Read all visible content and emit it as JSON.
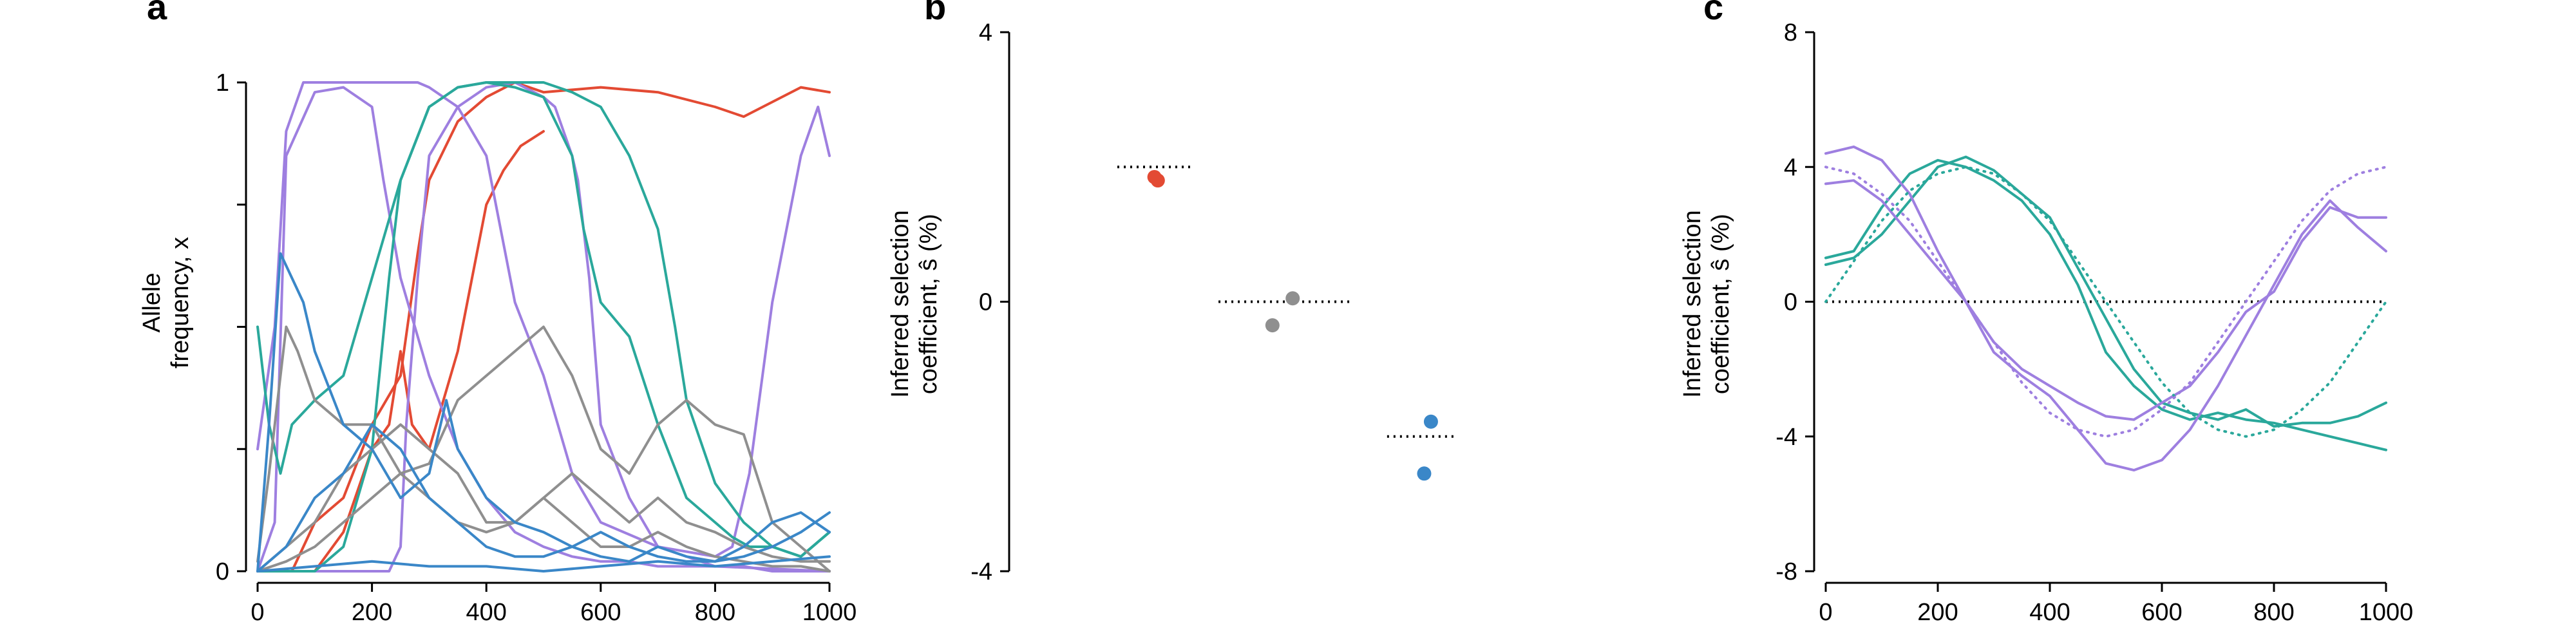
{
  "figure": {
    "panels": [
      {
        "letter": "a"
      },
      {
        "letter": "b"
      },
      {
        "letter": "c"
      }
    ]
  },
  "chart_data": [
    {
      "panel": "a",
      "type": "line",
      "ylabel_lines": [
        "Allele",
        "frequency, x"
      ],
      "xlabel": "",
      "xlim": [
        0,
        1000
      ],
      "ylim": [
        0,
        1
      ],
      "xticks": [
        0,
        200,
        400,
        600,
        800,
        1000
      ],
      "yticks": [
        0,
        1
      ],
      "grid": false,
      "colors": {
        "red": "#e34a33",
        "purple": "#9e7fe0",
        "teal": "#2aa89b",
        "gray": "#8f8f8f",
        "blue": "#3a87c8"
      },
      "series": [
        {
          "color": "#e34a33",
          "x": [
            0,
            60,
            100,
            150,
            200,
            250,
            280,
            300,
            350,
            400,
            450,
            500,
            600,
            700,
            800,
            850,
            900,
            950,
            1000
          ],
          "y": [
            0,
            0,
            0.1,
            0.15,
            0.3,
            0.4,
            0.65,
            0.8,
            0.92,
            0.97,
            1,
            0.98,
            0.99,
            0.98,
            0.95,
            0.93,
            0.96,
            0.99,
            0.98
          ]
        },
        {
          "color": "#e34a33",
          "x": [
            0,
            100,
            150,
            200,
            230,
            250,
            270,
            300,
            350,
            400,
            430,
            460,
            500
          ],
          "y": [
            0,
            0,
            0.08,
            0.25,
            0.3,
            0.45,
            0.3,
            0.25,
            0.45,
            0.75,
            0.82,
            0.87,
            0.9
          ]
        },
        {
          "color": "#9e7fe0",
          "x": [
            0,
            30,
            50,
            80,
            100,
            200,
            250,
            280,
            300,
            350,
            400,
            450,
            500,
            550,
            600,
            700,
            800,
            830,
            860,
            900,
            950,
            980,
            1000
          ],
          "y": [
            0.25,
            0.5,
            0.9,
            1,
            1,
            1,
            1,
            1,
            0.99,
            0.95,
            0.85,
            0.55,
            0.4,
            0.2,
            0.1,
            0.05,
            0.03,
            0.05,
            0.2,
            0.55,
            0.85,
            0.95,
            0.85
          ]
        },
        {
          "color": "#9e7fe0",
          "x": [
            0,
            100,
            200,
            230,
            250,
            260,
            280,
            300,
            350,
            400,
            450,
            500,
            520,
            550,
            560,
            580,
            600,
            650,
            700,
            800,
            1000
          ],
          "y": [
            0,
            0,
            0,
            0,
            0.05,
            0.3,
            0.6,
            0.85,
            0.95,
            0.99,
            1,
            0.97,
            0.95,
            0.85,
            0.8,
            0.6,
            0.3,
            0.15,
            0.05,
            0.01,
            0
          ]
        },
        {
          "color": "#9e7fe0",
          "x": [
            0,
            30,
            50,
            100,
            150,
            200,
            220,
            250,
            300,
            350,
            400,
            450,
            500,
            550,
            600,
            650,
            700,
            750,
            800,
            850,
            900,
            950,
            1000
          ],
          "y": [
            0,
            0.1,
            0.85,
            0.98,
            0.99,
            0.95,
            0.8,
            0.6,
            0.4,
            0.25,
            0.15,
            0.08,
            0.05,
            0.03,
            0.02,
            0.02,
            0.01,
            0.01,
            0.01,
            0.01,
            0,
            0,
            0
          ]
        },
        {
          "color": "#2aa89b",
          "x": [
            0,
            20,
            40,
            60,
            100,
            150,
            200,
            250,
            300,
            350,
            400,
            450,
            500,
            550,
            570,
            600,
            650,
            700,
            750,
            800,
            830,
            860,
            900,
            950,
            1000
          ],
          "y": [
            0.5,
            0.3,
            0.2,
            0.3,
            0.35,
            0.4,
            0.6,
            0.8,
            0.95,
            0.99,
            1,
            0.99,
            0.97,
            0.85,
            0.7,
            0.55,
            0.48,
            0.3,
            0.15,
            0.1,
            0.07,
            0.05,
            0.05,
            0.03,
            0.08
          ]
        },
        {
          "color": "#2aa89b",
          "x": [
            0,
            100,
            150,
            200,
            230,
            250,
            300,
            350,
            400,
            450,
            500,
            550,
            600,
            650,
            700,
            730,
            750,
            800,
            850,
            900,
            950,
            1000
          ],
          "y": [
            0,
            0,
            0.05,
            0.25,
            0.6,
            0.8,
            0.95,
            0.99,
            1,
            1,
            1,
            0.98,
            0.95,
            0.85,
            0.7,
            0.5,
            0.35,
            0.18,
            0.1,
            0.05,
            0.03,
            0.08
          ]
        },
        {
          "color": "#8f8f8f",
          "x": [
            0,
            20,
            50,
            70,
            100,
            150,
            200,
            250,
            300,
            350,
            400,
            450,
            500,
            550,
            600,
            650,
            700,
            750,
            800,
            850,
            900,
            950,
            1000
          ],
          "y": [
            0.02,
            0.2,
            0.5,
            0.45,
            0.35,
            0.3,
            0.3,
            0.2,
            0.22,
            0.35,
            0.4,
            0.45,
            0.5,
            0.4,
            0.25,
            0.2,
            0.3,
            0.35,
            0.3,
            0.28,
            0.1,
            0.05,
            0
          ]
        },
        {
          "color": "#8f8f8f",
          "x": [
            0,
            50,
            100,
            150,
            200,
            250,
            300,
            350,
            400,
            450,
            500,
            550,
            600,
            650,
            700,
            750,
            800,
            850,
            900,
            950,
            1000
          ],
          "y": [
            0,
            0.05,
            0.1,
            0.2,
            0.25,
            0.3,
            0.25,
            0.2,
            0.1,
            0.1,
            0.15,
            0.2,
            0.15,
            0.1,
            0.15,
            0.1,
            0.08,
            0.05,
            0.03,
            0.02,
            0.02
          ]
        },
        {
          "color": "#8f8f8f",
          "x": [
            0,
            50,
            100,
            150,
            200,
            250,
            300,
            350,
            400,
            450,
            500,
            550,
            600,
            650,
            700,
            750,
            800,
            850,
            900,
            950,
            1000
          ],
          "y": [
            0,
            0.02,
            0.05,
            0.1,
            0.15,
            0.2,
            0.15,
            0.1,
            0.08,
            0.1,
            0.15,
            0.1,
            0.05,
            0.05,
            0.08,
            0.05,
            0.03,
            0.02,
            0.01,
            0.01,
            0
          ]
        },
        {
          "color": "#3a87c8",
          "x": [
            0,
            20,
            40,
            60,
            80,
            100,
            150,
            200,
            250,
            300,
            330,
            350,
            400,
            450,
            500,
            550,
            600,
            650,
            700,
            750,
            800,
            850,
            900,
            950,
            1000
          ],
          "y": [
            0,
            0.3,
            0.65,
            0.6,
            0.55,
            0.45,
            0.3,
            0.25,
            0.15,
            0.2,
            0.35,
            0.25,
            0.15,
            0.1,
            0.08,
            0.05,
            0.08,
            0.05,
            0.03,
            0.02,
            0.02,
            0.05,
            0.1,
            0.12,
            0.08
          ]
        },
        {
          "color": "#3a87c8",
          "x": [
            0,
            50,
            100,
            150,
            200,
            250,
            300,
            350,
            400,
            450,
            500,
            550,
            600,
            650,
            700,
            750,
            800,
            850,
            900,
            950,
            1000
          ],
          "y": [
            0,
            0.05,
            0.15,
            0.2,
            0.3,
            0.25,
            0.15,
            0.1,
            0.05,
            0.03,
            0.03,
            0.05,
            0.03,
            0.02,
            0.05,
            0.03,
            0.02,
            0.03,
            0.05,
            0.08,
            0.12
          ]
        },
        {
          "color": "#3a87c8",
          "x": [
            0,
            100,
            200,
            300,
            400,
            500,
            600,
            700,
            800,
            900,
            1000
          ],
          "y": [
            0,
            0.01,
            0.02,
            0.01,
            0.01,
            0,
            0.01,
            0.02,
            0.01,
            0.02,
            0.03
          ]
        }
      ]
    },
    {
      "panel": "b",
      "type": "scatter",
      "ylabel_lines": [
        "Inferred selection",
        "coefficient, ŝ (%)"
      ],
      "ylim": [
        -4,
        4
      ],
      "yticks": [
        -4,
        0,
        4
      ],
      "grid": false,
      "reference_lines": [
        {
          "value": 2,
          "x_range": [
            0,
            1.1
          ],
          "style": "dotted"
        },
        {
          "value": 0,
          "x_range": [
            1.5,
            3.5
          ],
          "style": "dotted"
        },
        {
          "value": -2,
          "x_range": [
            4.0,
            5.0
          ],
          "style": "dotted"
        }
      ],
      "points": [
        {
          "x": 0.55,
          "y": 1.85,
          "color": "#e34a33"
        },
        {
          "x": 0.6,
          "y": 1.8,
          "color": "#e34a33"
        },
        {
          "x": 2.3,
          "y": -0.35,
          "color": "#8f8f8f"
        },
        {
          "x": 2.6,
          "y": 0.05,
          "color": "#8f8f8f"
        },
        {
          "x": 4.55,
          "y": -2.55,
          "color": "#3a87c8"
        },
        {
          "x": 4.65,
          "y": -1.78,
          "color": "#3a87c8"
        }
      ]
    },
    {
      "panel": "c",
      "type": "line",
      "ylabel_lines": [
        "Inferred selection",
        "coefficient, ŝ (%)"
      ],
      "xlim": [
        0,
        1000
      ],
      "ylim": [
        -8,
        8
      ],
      "xticks": [
        0,
        200,
        400,
        600,
        800,
        1000
      ],
      "yticks": [
        -8,
        -4,
        0,
        4,
        8
      ],
      "grid": false,
      "zero_line": {
        "value": 0,
        "style": "dotted"
      },
      "series": [
        {
          "style": "solid",
          "color": "#2aa89b",
          "x": [
            0,
            50,
            100,
            150,
            200,
            250,
            300,
            350,
            400,
            450,
            500,
            550,
            600,
            650,
            700,
            750,
            800,
            850,
            900,
            950,
            1000
          ],
          "y": [
            1.3,
            1.5,
            2.8,
            3.8,
            4.2,
            4.0,
            3.6,
            3.0,
            2.0,
            0.5,
            -1.5,
            -2.5,
            -3.2,
            -3.5,
            -3.3,
            -3.5,
            -3.6,
            -3.8,
            -4.0,
            -4.2,
            -4.4
          ]
        },
        {
          "style": "solid",
          "color": "#2aa89b",
          "x": [
            0,
            50,
            100,
            150,
            200,
            250,
            300,
            350,
            400,
            450,
            500,
            550,
            600,
            650,
            700,
            750,
            800,
            850,
            900,
            950,
            1000
          ],
          "y": [
            1.1,
            1.3,
            2.0,
            3.0,
            4.0,
            4.3,
            3.9,
            3.2,
            2.5,
            1.0,
            -0.5,
            -2.0,
            -3.0,
            -3.3,
            -3.5,
            -3.2,
            -3.7,
            -3.6,
            -3.6,
            -3.4,
            -3.0
          ]
        },
        {
          "style": "solid",
          "color": "#9e7fe0",
          "x": [
            0,
            50,
            100,
            150,
            200,
            250,
            300,
            350,
            400,
            450,
            500,
            550,
            600,
            650,
            700,
            750,
            800,
            850,
            900,
            950,
            1000
          ],
          "y": [
            4.4,
            4.6,
            4.2,
            3.2,
            1.5,
            0,
            -1.5,
            -2.2,
            -2.8,
            -3.8,
            -4.8,
            -5.0,
            -4.7,
            -3.8,
            -2.5,
            -1.0,
            0.5,
            2.0,
            3.0,
            2.2,
            1.5
          ]
        },
        {
          "style": "solid",
          "color": "#9e7fe0",
          "x": [
            0,
            50,
            100,
            150,
            200,
            250,
            300,
            350,
            400,
            450,
            500,
            550,
            600,
            650,
            700,
            750,
            800,
            850,
            900,
            950,
            1000
          ],
          "y": [
            3.5,
            3.6,
            3.0,
            2.0,
            1.0,
            0,
            -1.2,
            -2.0,
            -2.5,
            -3.0,
            -3.4,
            -3.5,
            -3.0,
            -2.5,
            -1.5,
            -0.3,
            0.3,
            1.8,
            2.8,
            2.5,
            2.5
          ]
        },
        {
          "style": "dotted",
          "color": "#2aa89b",
          "x": [
            0,
            50,
            100,
            150,
            200,
            250,
            300,
            350,
            400,
            450,
            500,
            550,
            600,
            650,
            700,
            750,
            800,
            850,
            900,
            950,
            1000
          ],
          "y": [
            0,
            1.2,
            2.4,
            3.3,
            3.8,
            4.0,
            3.8,
            3.2,
            2.4,
            1.2,
            0,
            -1.2,
            -2.4,
            -3.3,
            -3.8,
            -4.0,
            -3.8,
            -3.2,
            -2.4,
            -1.2,
            0
          ]
        },
        {
          "style": "dotted",
          "color": "#9e7fe0",
          "x": [
            0,
            50,
            100,
            150,
            200,
            250,
            300,
            350,
            400,
            450,
            500,
            550,
            600,
            650,
            700,
            750,
            800,
            850,
            900,
            950,
            1000
          ],
          "y": [
            4.0,
            3.8,
            3.2,
            2.4,
            1.2,
            0,
            -1.2,
            -2.4,
            -3.3,
            -3.8,
            -4.0,
            -3.8,
            -3.2,
            -2.4,
            -1.2,
            0,
            1.2,
            2.4,
            3.3,
            3.8,
            4.0
          ]
        }
      ]
    }
  ]
}
